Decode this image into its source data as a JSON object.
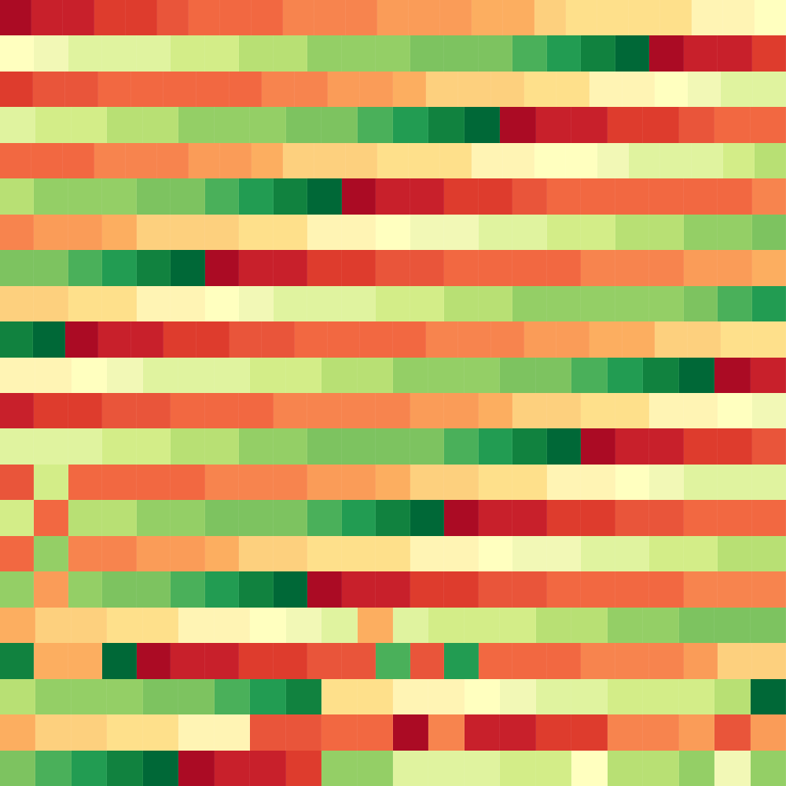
{
  "palette": [
    "#ab0b24",
    "#c8202b",
    "#de3c2d",
    "#e9553a",
    "#f26841",
    "#f7844e",
    "#fa9c58",
    "#fcae60",
    "#fdd07e",
    "#fee08b",
    "#fff4b4",
    "#ffffbf",
    "#f2f8b6",
    "#e0f39f",
    "#d3ed88",
    "#b8e074",
    "#94cf66",
    "#7dc360",
    "#4ab05a",
    "#229c52",
    "#11823f",
    "#006837"
  ],
  "rows": [
    [
      0,
      1,
      1,
      2,
      2,
      3,
      4,
      4,
      4,
      5,
      5,
      5,
      6,
      6,
      6,
      7,
      7,
      8,
      9,
      9,
      9,
      9,
      10,
      10,
      11
    ],
    [
      11,
      12,
      13,
      13,
      13,
      14,
      14,
      15,
      15,
      16,
      16,
      16,
      17,
      17,
      17,
      18,
      19,
      20,
      21,
      0,
      1,
      1,
      2
    ],
    [
      2,
      3,
      3,
      4,
      4,
      4,
      4,
      4,
      5,
      5,
      6,
      6,
      7,
      8,
      8,
      8,
      9,
      9,
      10,
      10,
      11,
      12,
      13,
      13
    ],
    [
      13,
      14,
      14,
      15,
      15,
      16,
      16,
      16,
      17,
      17,
      18,
      19,
      20,
      21,
      0,
      1,
      1,
      2,
      2,
      3,
      4,
      4
    ],
    [
      4,
      4,
      4,
      5,
      5,
      5,
      6,
      6,
      7,
      8,
      8,
      8,
      9,
      9,
      9,
      10,
      10,
      11,
      11,
      12,
      13,
      13,
      13,
      14,
      15
    ],
    [
      15,
      16,
      16,
      16,
      17,
      17,
      18,
      19,
      20,
      21,
      0,
      1,
      1,
      2,
      2,
      3,
      4,
      4,
      4,
      4,
      4,
      4,
      5
    ],
    [
      5,
      6,
      6,
      7,
      8,
      8,
      8,
      9,
      9,
      10,
      10,
      11,
      12,
      12,
      13,
      13,
      14,
      14,
      15,
      15,
      16,
      16,
      17
    ],
    [
      17,
      17,
      18,
      19,
      20,
      21,
      0,
      1,
      1,
      2,
      2,
      3,
      3,
      4,
      4,
      4,
      4,
      5,
      5,
      5,
      6,
      6,
      7
    ],
    [
      8,
      8,
      9,
      9,
      10,
      10,
      11,
      12,
      13,
      13,
      13,
      14,
      14,
      15,
      15,
      16,
      16,
      16,
      16,
      16,
      17,
      18,
      19
    ],
    [
      20,
      21,
      0,
      1,
      1,
      2,
      2,
      3,
      3,
      4,
      4,
      4,
      4,
      5,
      5,
      5,
      6,
      6,
      7,
      7,
      8,
      8,
      9,
      9
    ],
    [
      10,
      10,
      11,
      12,
      13,
      13,
      13,
      14,
      14,
      15,
      15,
      16,
      16,
      16,
      17,
      17,
      18,
      19,
      20,
      21,
      0,
      1
    ],
    [
      1,
      2,
      2,
      3,
      3,
      4,
      4,
      4,
      5,
      5,
      5,
      5,
      6,
      6,
      7,
      8,
      8,
      9,
      9,
      10,
      10,
      11,
      12
    ],
    [
      13,
      13,
      13,
      14,
      14,
      15,
      15,
      16,
      16,
      17,
      17,
      17,
      17,
      18,
      19,
      20,
      21,
      0,
      1,
      1,
      2,
      2,
      3
    ],
    [
      3,
      14,
      4,
      4,
      4,
      4,
      5,
      5,
      5,
      6,
      6,
      7,
      8,
      8,
      9,
      9,
      10,
      10,
      11,
      12,
      13,
      13,
      13
    ],
    [
      14,
      4,
      15,
      15,
      16,
      16,
      17,
      17,
      17,
      18,
      19,
      20,
      21,
      0,
      1,
      1,
      2,
      2,
      3,
      3,
      4,
      4,
      4
    ],
    [
      4,
      16,
      5,
      5,
      6,
      6,
      7,
      8,
      8,
      9,
      9,
      9,
      10,
      10,
      11,
      12,
      12,
      13,
      13,
      14,
      14,
      15,
      15
    ],
    [
      16,
      6,
      16,
      17,
      17,
      18,
      19,
      20,
      21,
      0,
      1,
      1,
      2,
      2,
      3,
      3,
      4,
      4,
      4,
      4,
      5,
      5,
      5
    ],
    [
      7,
      8,
      8,
      9,
      9,
      10,
      10,
      11,
      12,
      13,
      7,
      13,
      14,
      14,
      14,
      15,
      15,
      16,
      16,
      17,
      17,
      17
    ],
    [
      20,
      7,
      7,
      21,
      0,
      1,
      1,
      2,
      2,
      3,
      3,
      18,
      3,
      19,
      4,
      4,
      4,
      5,
      5,
      5,
      6,
      8,
      8
    ],
    [
      15,
      16,
      16,
      16,
      17,
      17,
      18,
      19,
      20,
      9,
      9,
      10,
      10,
      11,
      12,
      13,
      13,
      14,
      14,
      14,
      15,
      21
    ],
    [
      7,
      8,
      8,
      9,
      9,
      10,
      10,
      3,
      3,
      4,
      4,
      0,
      5,
      1,
      1,
      2,
      2,
      5,
      5,
      6,
      3,
      6
    ],
    [
      17,
      18,
      19,
      20,
      21,
      0,
      1,
      1,
      2,
      16,
      16,
      13,
      13,
      13,
      14,
      14,
      11,
      15,
      15,
      16,
      12,
      16
    ]
  ]
}
